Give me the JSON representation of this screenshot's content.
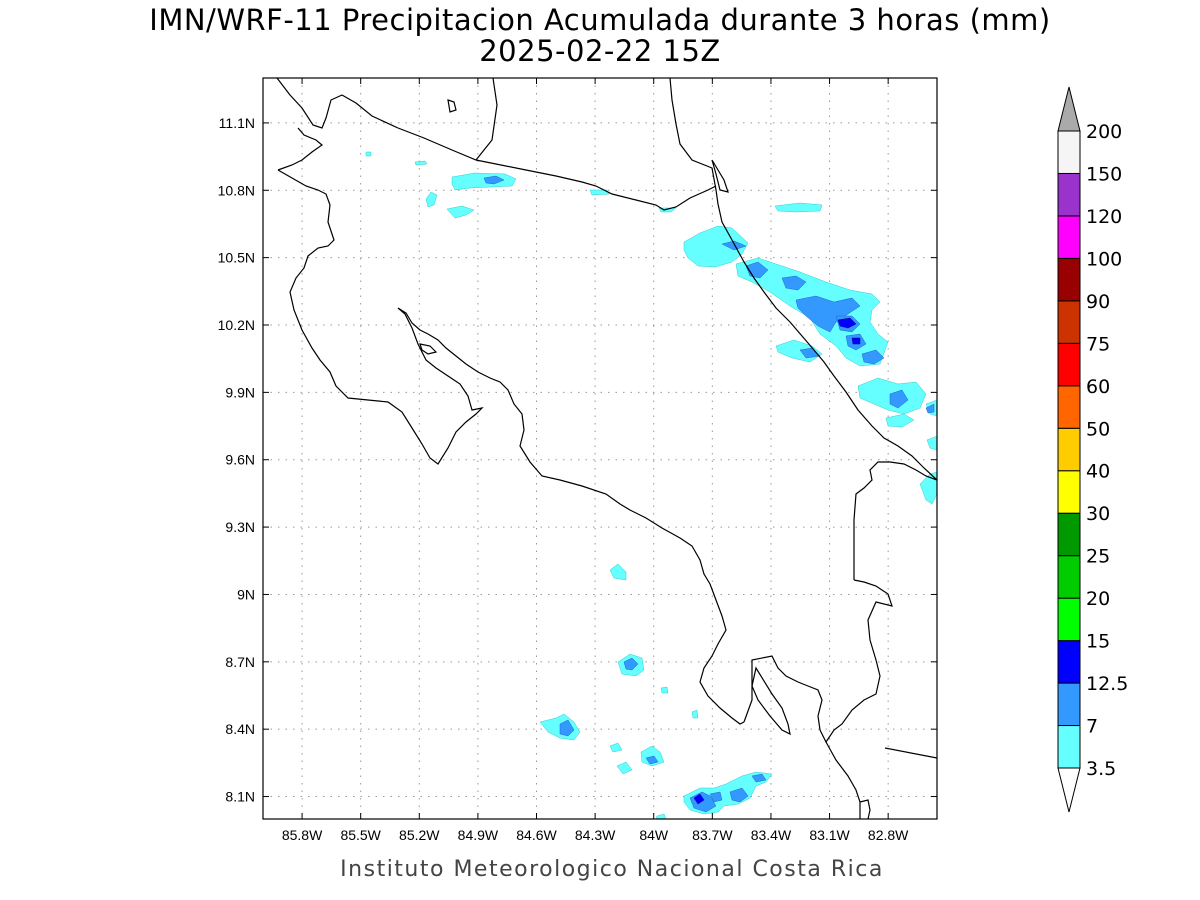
{
  "title": {
    "line1": "IMN/WRF-11 Precipitacion Acumulada durante 3 horas (mm)",
    "line2": "2025-02-22 15Z"
  },
  "map": {
    "lon_range": [
      -86.0,
      -82.55
    ],
    "lat_range": [
      8.0,
      11.3
    ],
    "x_ticks": [
      {
        "lon": -85.8,
        "label": "85.8W"
      },
      {
        "lon": -85.5,
        "label": "85.5W"
      },
      {
        "lon": -85.2,
        "label": "85.2W"
      },
      {
        "lon": -84.9,
        "label": "84.9W"
      },
      {
        "lon": -84.6,
        "label": "84.6W"
      },
      {
        "lon": -84.3,
        "label": "84.3W"
      },
      {
        "lon": -84.0,
        "label": "84W"
      },
      {
        "lon": -83.7,
        "label": "83.7W"
      },
      {
        "lon": -83.4,
        "label": "83.4W"
      },
      {
        "lon": -83.1,
        "label": "83.1W"
      },
      {
        "lon": -82.8,
        "label": "82.8W"
      }
    ],
    "y_ticks": [
      {
        "lat": 11.1,
        "label": "11.1N"
      },
      {
        "lat": 10.8,
        "label": "10.8N"
      },
      {
        "lat": 10.5,
        "label": "10.5N"
      },
      {
        "lat": 10.2,
        "label": "10.2N"
      },
      {
        "lat": 9.9,
        "label": "9.9N"
      },
      {
        "lat": 9.6,
        "label": "9.6N"
      },
      {
        "lat": 9.3,
        "label": "9.3N"
      },
      {
        "lat": 9.0,
        "label": "9N"
      },
      {
        "lat": 8.7,
        "label": "8.7N"
      },
      {
        "lat": 8.4,
        "label": "8.4N"
      },
      {
        "lat": 8.1,
        "label": "8.1N"
      }
    ],
    "gridlines": true,
    "colors": {
      "light": "#66ffff",
      "mid": "#3399ff",
      "heavy": "#0000ff",
      "coast": "#000000"
    }
  },
  "colorbar": {
    "labels": [
      "3.5",
      "7",
      "12.5",
      "15",
      "20",
      "25",
      "30",
      "40",
      "50",
      "60",
      "75",
      "90",
      "100",
      "120",
      "150",
      "200"
    ],
    "colors": [
      "#66ffff",
      "#3399ff",
      "#0000ff",
      "#00ff00",
      "#00cc00",
      "#009900",
      "#ffff00",
      "#ffcc00",
      "#ff6600",
      "#ff0000",
      "#cc3300",
      "#990000",
      "#ff00ff",
      "#9933cc",
      "#f5f5f5"
    ],
    "over_color": "#aaaaaa",
    "under_color": "#ffffff"
  },
  "footer": "Instituto Meteorologico Nacional Costa Rica"
}
